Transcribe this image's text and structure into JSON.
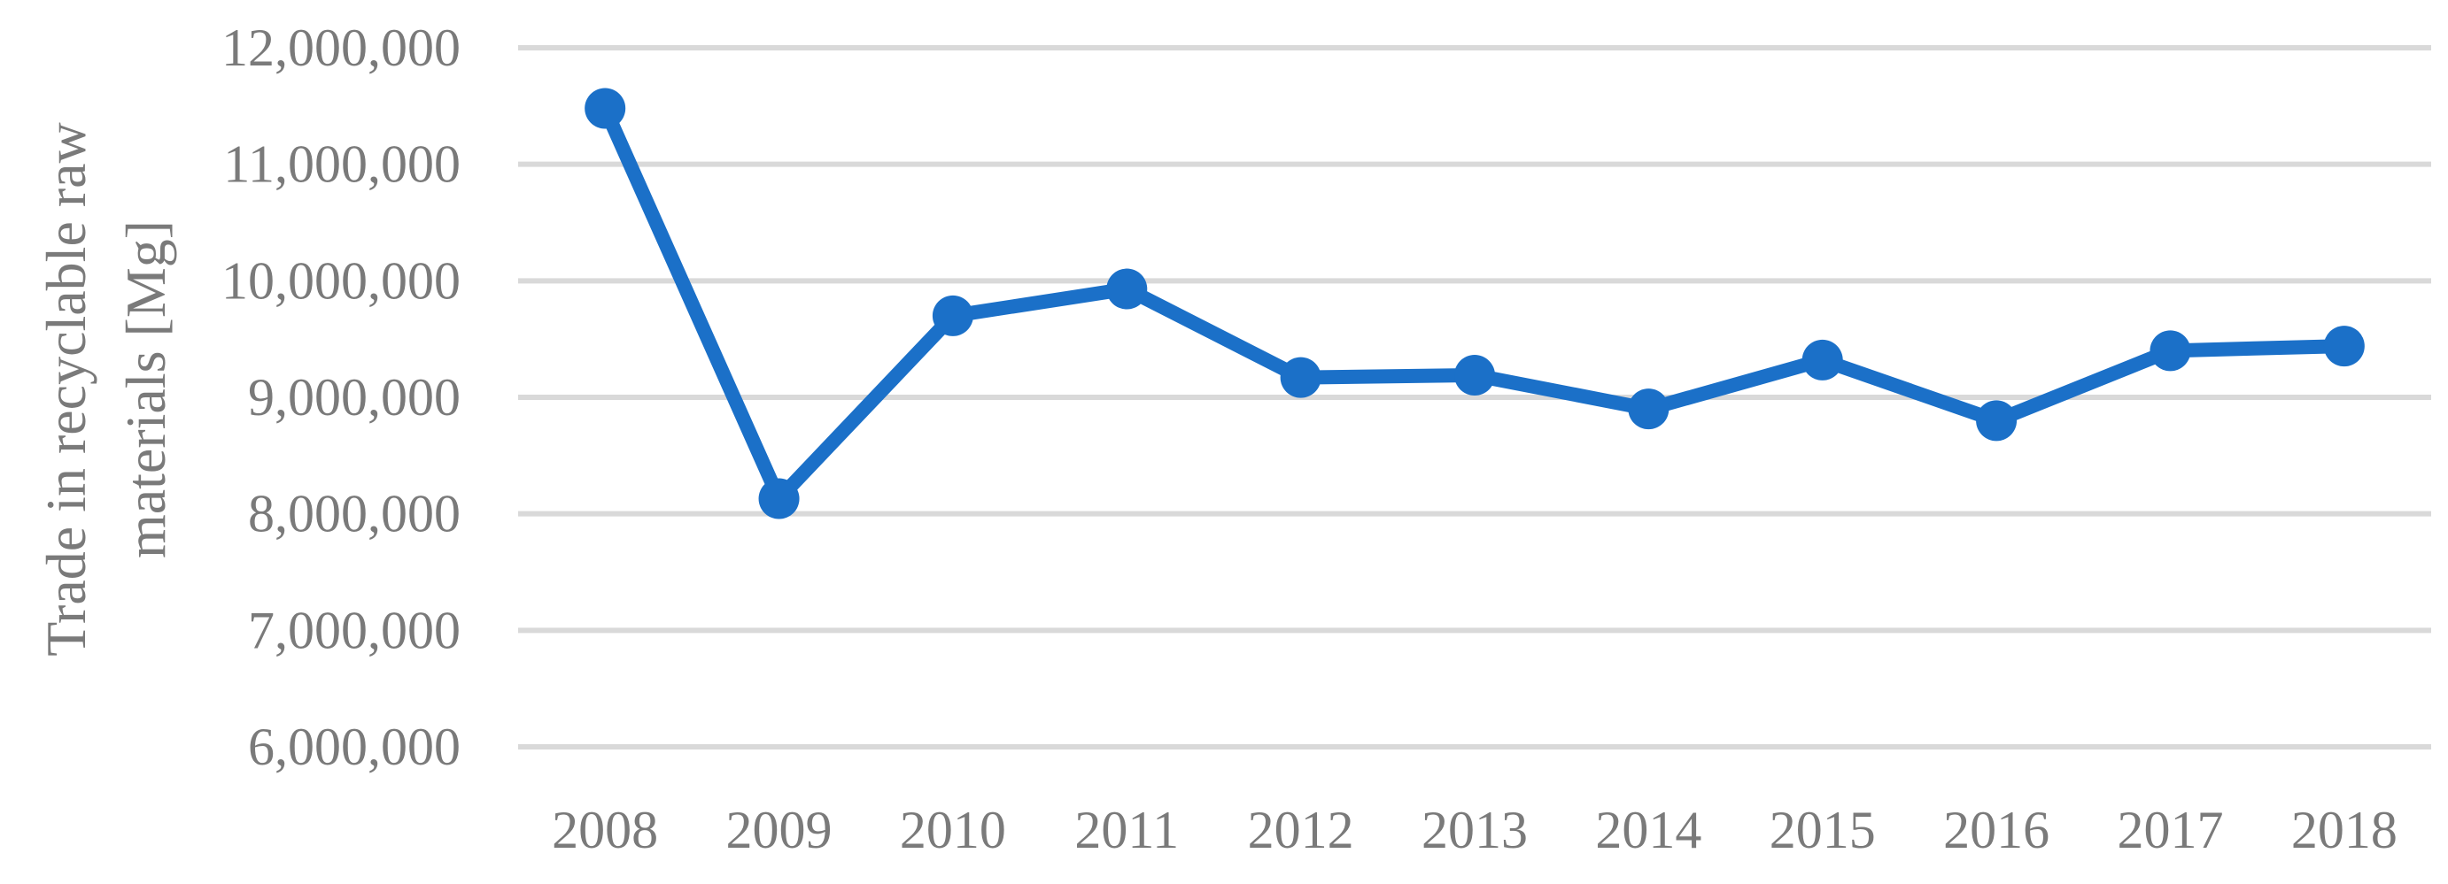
{
  "chart_data": {
    "type": "line",
    "title": "",
    "xlabel": "",
    "ylabel_lines": [
      "Trade in recyclable raw",
      "materials [Mg]"
    ],
    "categories": [
      "2008",
      "2009",
      "2010",
      "2011",
      "2012",
      "2013",
      "2014",
      "2015",
      "2016",
      "2017",
      "2018"
    ],
    "series": [
      {
        "values": [
          11480000,
          8130000,
          9700000,
          9930000,
          9170000,
          9190000,
          8900000,
          9320000,
          8800000,
          9400000,
          9440000
        ],
        "color": "#1b70c8"
      }
    ],
    "ylim": [
      6000000,
      12000000
    ],
    "yticks": [
      6000000,
      7000000,
      8000000,
      9000000,
      10000000,
      11000000,
      12000000
    ],
    "ytick_labels": [
      "6,000,000",
      "7,000,000",
      "8,000,000",
      "9,000,000",
      "10,000,000",
      "11,000,000",
      "12,000,000"
    ],
    "grid": true,
    "legend": "none"
  }
}
